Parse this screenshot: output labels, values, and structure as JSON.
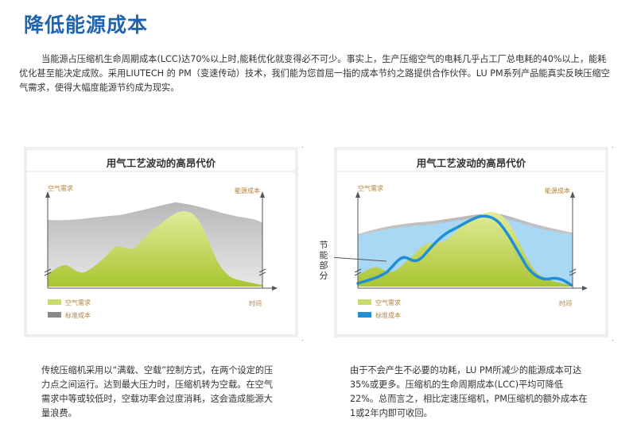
{
  "page": {
    "title": "降低能源成本",
    "intro": "当能源占压缩机生命周期成本(LCC)达70%以上时,能耗优化就变得必不可少。事实上，生产压缩空气的电耗几乎占工厂总电耗的40%以上，能耗优化甚至能决定成败。采用LIUTECH 的 PM（变速传动）技术，我们能为您首屈一指的成本节约之路提供合作伙伴。LU PM系列产品能真实反映压缩空气需求，使得大幅度能源节约成为现实。"
  },
  "panels": [
    {
      "title": "用气工艺波动的高昂代价",
      "y_axis_label": "空气需求",
      "y2_axis_label": "能源成本",
      "x_axis_label": "时间",
      "legend": [
        {
          "label": "空气需求",
          "color": "#c9db6c"
        },
        {
          "label": "标准成本",
          "color": "#8a8a8a"
        }
      ],
      "description": "传统压缩机采用以“满载、空载”控制方式，在两个设定的压力点之间运行。达到最大压力时，压缩机转为空载。在空气需求中等或较低时，空载功率会过度消耗，这会造成能源大量浪费。"
    },
    {
      "title": "用气工艺波动的高昂代价",
      "y_axis_label": "空气需求",
      "y2_axis_label": "能源成本",
      "x_axis_label": "时间",
      "callout": "节能部分",
      "legend": [
        {
          "label": "空气需求",
          "color": "#c9db6c"
        },
        {
          "label": "标准成本",
          "color": "#1e8fd6"
        }
      ],
      "description": "由于不会产生不必要的功耗，LU PM所减少的能源成本可达35%或更多。压缩机的生命周期成本(LCC)平均可降低22%。总而言之，相比定速压缩机，PM压缩机的额外成本在1或2年内即可收回。"
    }
  ],
  "colors": {
    "title": "#1f64ad",
    "axis_label": "#b5823a",
    "green_demand": "#c9db6c",
    "grey_cost": "#9a9a9a",
    "blue_area": "#a8d8f3",
    "blue_line": "#1e8fd6"
  }
}
